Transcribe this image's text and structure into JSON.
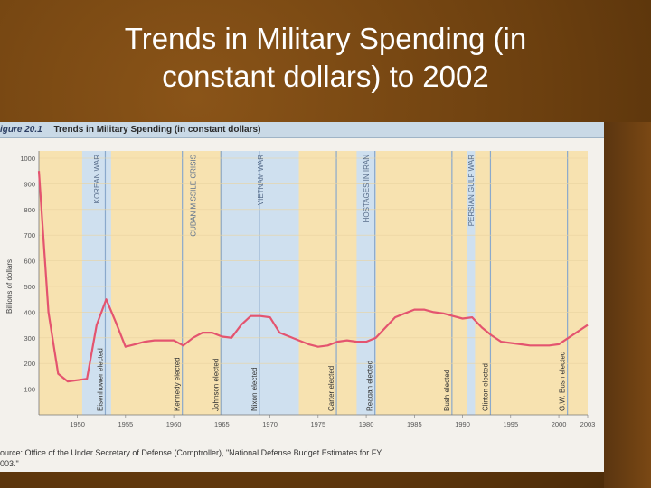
{
  "slide": {
    "title_line1": "Trends in Military Spending (in",
    "title_line2": "constant dollars) to 2002"
  },
  "figure": {
    "number": "igure 20.1",
    "title": "Trends in Military Spending (in constant dollars)",
    "source_line1": "ource: Office of the Under Secretary of Defense (Comptroller), \"National Defense Budget Estimates for FY",
    "source_line2": "003.\""
  },
  "colors": {
    "line": "#e4546f",
    "band_yellow": "#f7e2b0",
    "band_blue": "#cfe0ef",
    "event_line": "#8aa9cc"
  },
  "chart_data": {
    "type": "line",
    "ylabel": "Billions of dollars",
    "xlim": [
      1946,
      2003
    ],
    "ylim": [
      0,
      1000
    ],
    "y_ticks": [
      100,
      200,
      300,
      400,
      500,
      600,
      700,
      800,
      900,
      1000
    ],
    "x_ticks": [
      "1950",
      "1955",
      "1960",
      "1965",
      "1970",
      "1975",
      "1980",
      "1985",
      "1990",
      "1995",
      "2000",
      "2003"
    ],
    "x_tick_values": [
      1950,
      1955,
      1960,
      1965,
      1970,
      1975,
      1980,
      1985,
      1990,
      1995,
      2000,
      2003
    ],
    "series": [
      {
        "x": [
          1946,
          1947,
          1948,
          1949,
          1950,
          1951,
          1952,
          1953,
          1954,
          1955,
          1956,
          1957,
          1958,
          1959,
          1960,
          1961,
          1962,
          1963,
          1964,
          1965,
          1966,
          1967,
          1968,
          1969,
          1970,
          1971,
          1972,
          1973,
          1974,
          1975,
          1976,
          1977,
          1978,
          1979,
          1980,
          1981,
          1982,
          1983,
          1984,
          1985,
          1986,
          1987,
          1988,
          1989,
          1990,
          1991,
          1992,
          1993,
          1994,
          1995,
          1996,
          1997,
          1998,
          1999,
          2000,
          2001,
          2002,
          2003
        ],
        "values": [
          950,
          400,
          160,
          130,
          135,
          140,
          350,
          450,
          360,
          265,
          275,
          285,
          290,
          290,
          290,
          270,
          300,
          320,
          320,
          305,
          300,
          350,
          385,
          385,
          380,
          320,
          305,
          290,
          275,
          265,
          270,
          285,
          290,
          285,
          285,
          300,
          340,
          380,
          395,
          410,
          410,
          400,
          395,
          385,
          375,
          380,
          340,
          310,
          285,
          280,
          275,
          270,
          270,
          270,
          275,
          300,
          325,
          350
        ]
      }
    ],
    "periods": [
      {
        "label": "KOREAN WAR",
        "start": 1950.5,
        "end": 1953.5,
        "color": "blue"
      },
      {
        "label": "CUBAN MISSILE CRISIS",
        "start": 1961.0,
        "end": 1963.0,
        "color": "yellow"
      },
      {
        "label": "VIETNAM WAR",
        "start": 1965.0,
        "end": 1973.0,
        "color": "blue"
      },
      {
        "label": "HOSTAGES IN IRAN",
        "start": 1979.0,
        "end": 1981.0,
        "color": "blue"
      },
      {
        "label": "PERSIAN GULF WAR",
        "start": 1990.5,
        "end": 1991.3,
        "color": "blue"
      }
    ],
    "events": [
      {
        "label": "Eisenhower elected",
        "x": 1952.9
      },
      {
        "label": "Kennedy elected",
        "x": 1960.9
      },
      {
        "label": "Johnson elected",
        "x": 1964.9
      },
      {
        "label": "Nixon elected",
        "x": 1968.9
      },
      {
        "label": "Carter elected",
        "x": 1976.9
      },
      {
        "label": "Reagan elected",
        "x": 1980.9
      },
      {
        "label": "Bush elected",
        "x": 1988.9
      },
      {
        "label": "Clinton elected",
        "x": 1992.9
      },
      {
        "label": "G.W. Bush elected",
        "x": 2000.9
      }
    ]
  }
}
